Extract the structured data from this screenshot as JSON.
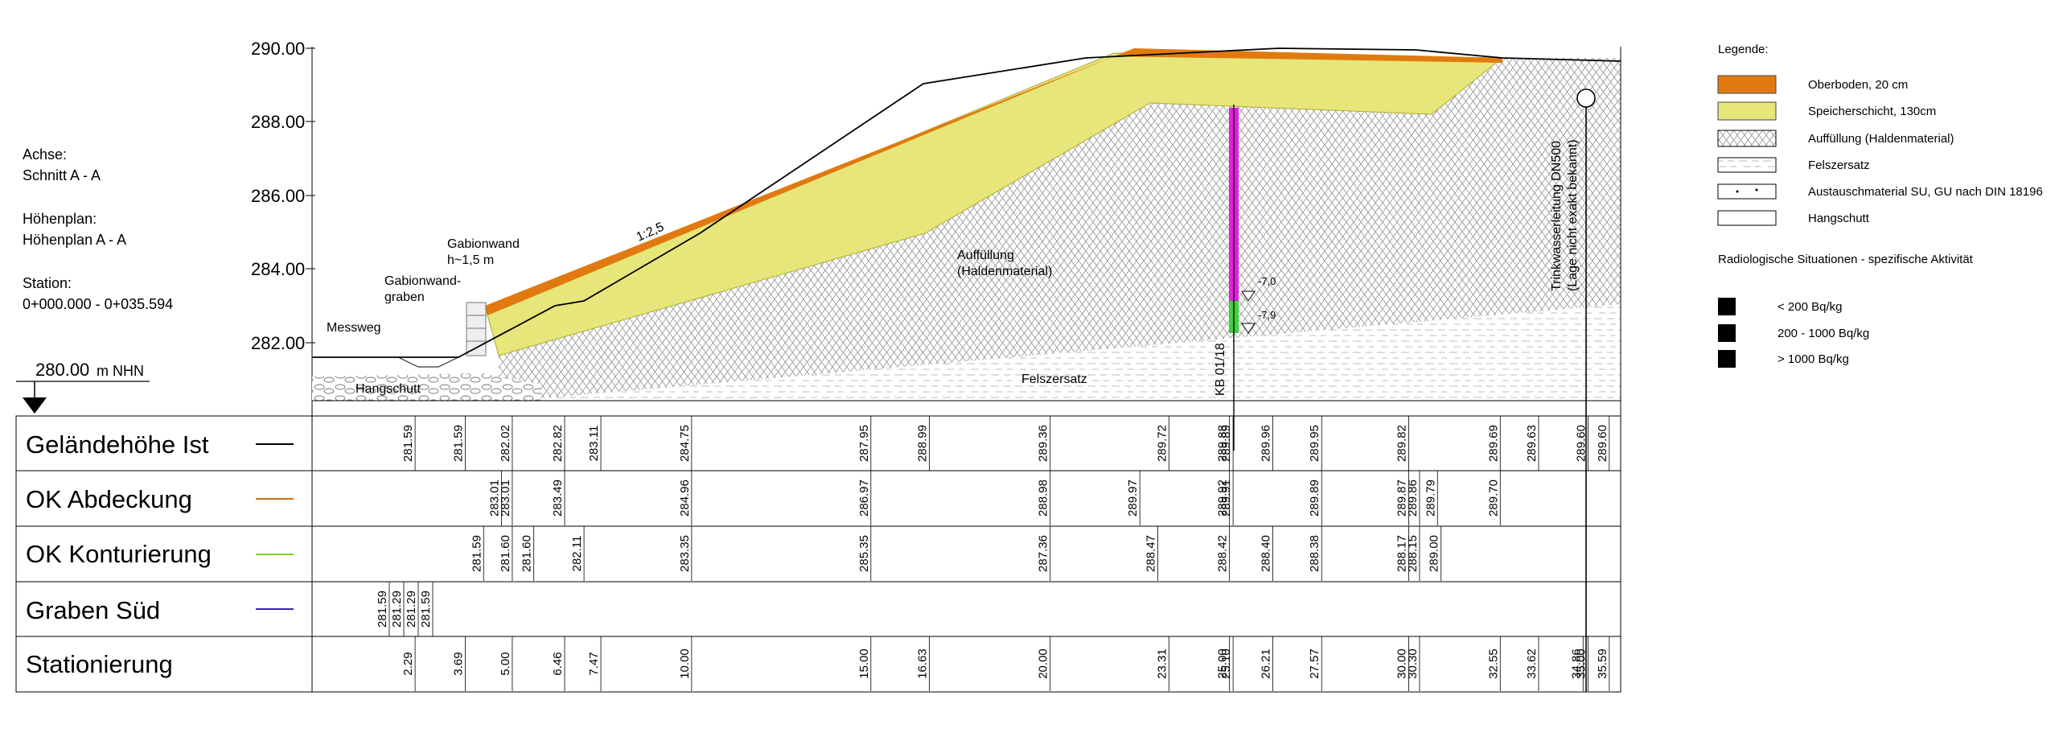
{
  "info": {
    "achse_label": "Achse:",
    "achse_value": "Schnitt A - A",
    "hoehenplan_label": "Höhenplan:",
    "hoehenplan_value": "Höhenplan A - A",
    "station_label": "Station:",
    "station_value": "0+000.000 - 0+035.594",
    "ref_level": "280.00",
    "ref_unit": "m NHN"
  },
  "y_axis": {
    "ticks": [
      "290.00",
      "288.00",
      "286.00",
      "284.00",
      "282.00"
    ]
  },
  "annotations": {
    "messweg": "Messweg",
    "hangschutt": "Hangschutt",
    "gabionwand_graben_1": "Gabionwand-",
    "gabionwand_graben_2": "graben",
    "gabionwand_1": "Gabionwand",
    "gabionwand_2": "h~1,5 m",
    "slope": "1:2,5",
    "auffuellung_1": "Auffüllung",
    "auffuellung_2": "(Haldenmaterial)",
    "felszersatz": "Felszersatz",
    "borehole": "KB 01/18",
    "depth_1": "-7,0",
    "depth_2": "-7,9",
    "pipe_1": "Trinkwasserleitung DN500",
    "pipe_2": "(Lage nicht exakt bekannt)"
  },
  "legend": {
    "title": "Legende:",
    "items": [
      {
        "label": "Oberboden, 20 cm",
        "color": "#e07a10"
      },
      {
        "label": "Speicherschicht, 130cm",
        "color": "#e6e67a"
      },
      {
        "label": "Auffüllung (Haldenmaterial)",
        "color": "hatch"
      },
      {
        "label": "Felszersatz",
        "color": "dash"
      },
      {
        "label": "Austauschmaterial SU, GU nach DIN 18196",
        "color": "dots"
      },
      {
        "label": "Hangschutt",
        "color": "white"
      }
    ],
    "radio_title": "Radiologische Situationen - spezifische Aktivität",
    "radio_items": [
      {
        "label": "< 200 Bq/kg",
        "color": "#000000"
      },
      {
        "label": "200 - 1000 Bq/kg",
        "color": "#000000"
      },
      {
        "label": "> 1000 Bq/kg",
        "color": "#000000"
      }
    ]
  },
  "table": {
    "rows": [
      {
        "label": "Geländehöhe Ist",
        "line_color": "#000000"
      },
      {
        "label": "OK Abdeckung",
        "line_color": "#c87010"
      },
      {
        "label": "OK Konturierung",
        "line_color": "#7ed321"
      },
      {
        "label": "Graben Süd",
        "line_color": "#4020b0"
      },
      {
        "label": "Stationierung",
        "line_color": ""
      }
    ]
  },
  "chart_data": {
    "type": "line",
    "xlabel": "",
    "ylabel": "",
    "xlim": [
      0,
      35.594
    ],
    "ylim": [
      280.0,
      290.0
    ],
    "series": [
      {
        "name": "Geländehöhe Ist",
        "x": [
          2.29,
          3.69,
          5.0,
          6.46,
          7.47,
          10.0,
          15.0,
          16.63,
          20.0,
          23.31,
          25.0,
          25.1,
          26.21,
          27.57,
          30.0,
          32.55,
          33.62,
          35.0,
          35.59
        ],
        "values": [
          281.59,
          281.59,
          282.02,
          282.82,
          283.11,
          284.75,
          287.95,
          288.99,
          289.36,
          289.72,
          289.88,
          289.89,
          289.96,
          289.95,
          289.82,
          289.69,
          289.63,
          289.6,
          289.6
        ]
      },
      {
        "name": "OK Abdeckung",
        "x": [
          4.7,
          5.0,
          6.46,
          10.0,
          15.0,
          20.0,
          22.5,
          25.0,
          25.1,
          27.57,
          30.0,
          30.3,
          30.8,
          32.55
        ],
        "values": [
          283.01,
          283.01,
          283.49,
          284.96,
          286.97,
          288.98,
          289.97,
          289.92,
          289.91,
          289.89,
          289.87,
          289.86,
          289.79,
          289.7
        ]
      },
      {
        "name": "OK Konturierung",
        "x": [
          4.2,
          5.0,
          5.6,
          7.0,
          10.0,
          15.0,
          20.0,
          23.0,
          25.0,
          26.21,
          27.57,
          30.0,
          30.3,
          30.9
        ],
        "values": [
          281.59,
          281.6,
          281.6,
          282.11,
          283.35,
          285.35,
          287.36,
          288.47,
          288.42,
          288.4,
          288.38,
          288.17,
          288.15,
          289.0
        ]
      },
      {
        "name": "Graben Süd",
        "x": [
          2.2,
          2.5,
          2.9,
          3.5
        ],
        "values": [
          281.59,
          281.29,
          281.29,
          281.59
        ]
      }
    ],
    "table_values": {
      "Geländehöhe Ist": [
        "281.59",
        "281.59",
        "282.02",
        "282.82",
        "283.11",
        "284.75",
        "287.95",
        "288.99",
        "289.36",
        "289.72",
        "289.88",
        "289.89",
        "289.96",
        "289.95",
        "289.82",
        "289.69",
        "289.63",
        "289.60",
        "289.60"
      ],
      "OK Abdeckung": [
        "283.01",
        "283.01",
        "283.49",
        "284.96",
        "286.97",
        "288.98",
        "289.97",
        "289.92",
        "289.91",
        "289.89",
        "289.87",
        "289.86",
        "289.79",
        "289.70"
      ],
      "OK Konturierung": [
        "281.59",
        "281.60",
        "281.60",
        "282.11",
        "283.35",
        "285.35",
        "287.36",
        "288.47",
        "288.42",
        "288.40",
        "288.38",
        "288.17",
        "288.15",
        "289.00"
      ],
      "Graben Süd": [
        "281.59",
        "281.29",
        "281.29",
        "281.59"
      ],
      "Stationierung": [
        "2.29",
        "3.69",
        "5.00",
        "6.46",
        "7.47",
        "10.00",
        "15.00",
        "16.63",
        "20.00",
        "23.31",
        "25.00",
        "25.10",
        "26.21",
        "27.57",
        "30.00",
        "30.30",
        "32.55",
        "33.62",
        "34.86",
        "35.00",
        "35.59"
      ]
    }
  }
}
